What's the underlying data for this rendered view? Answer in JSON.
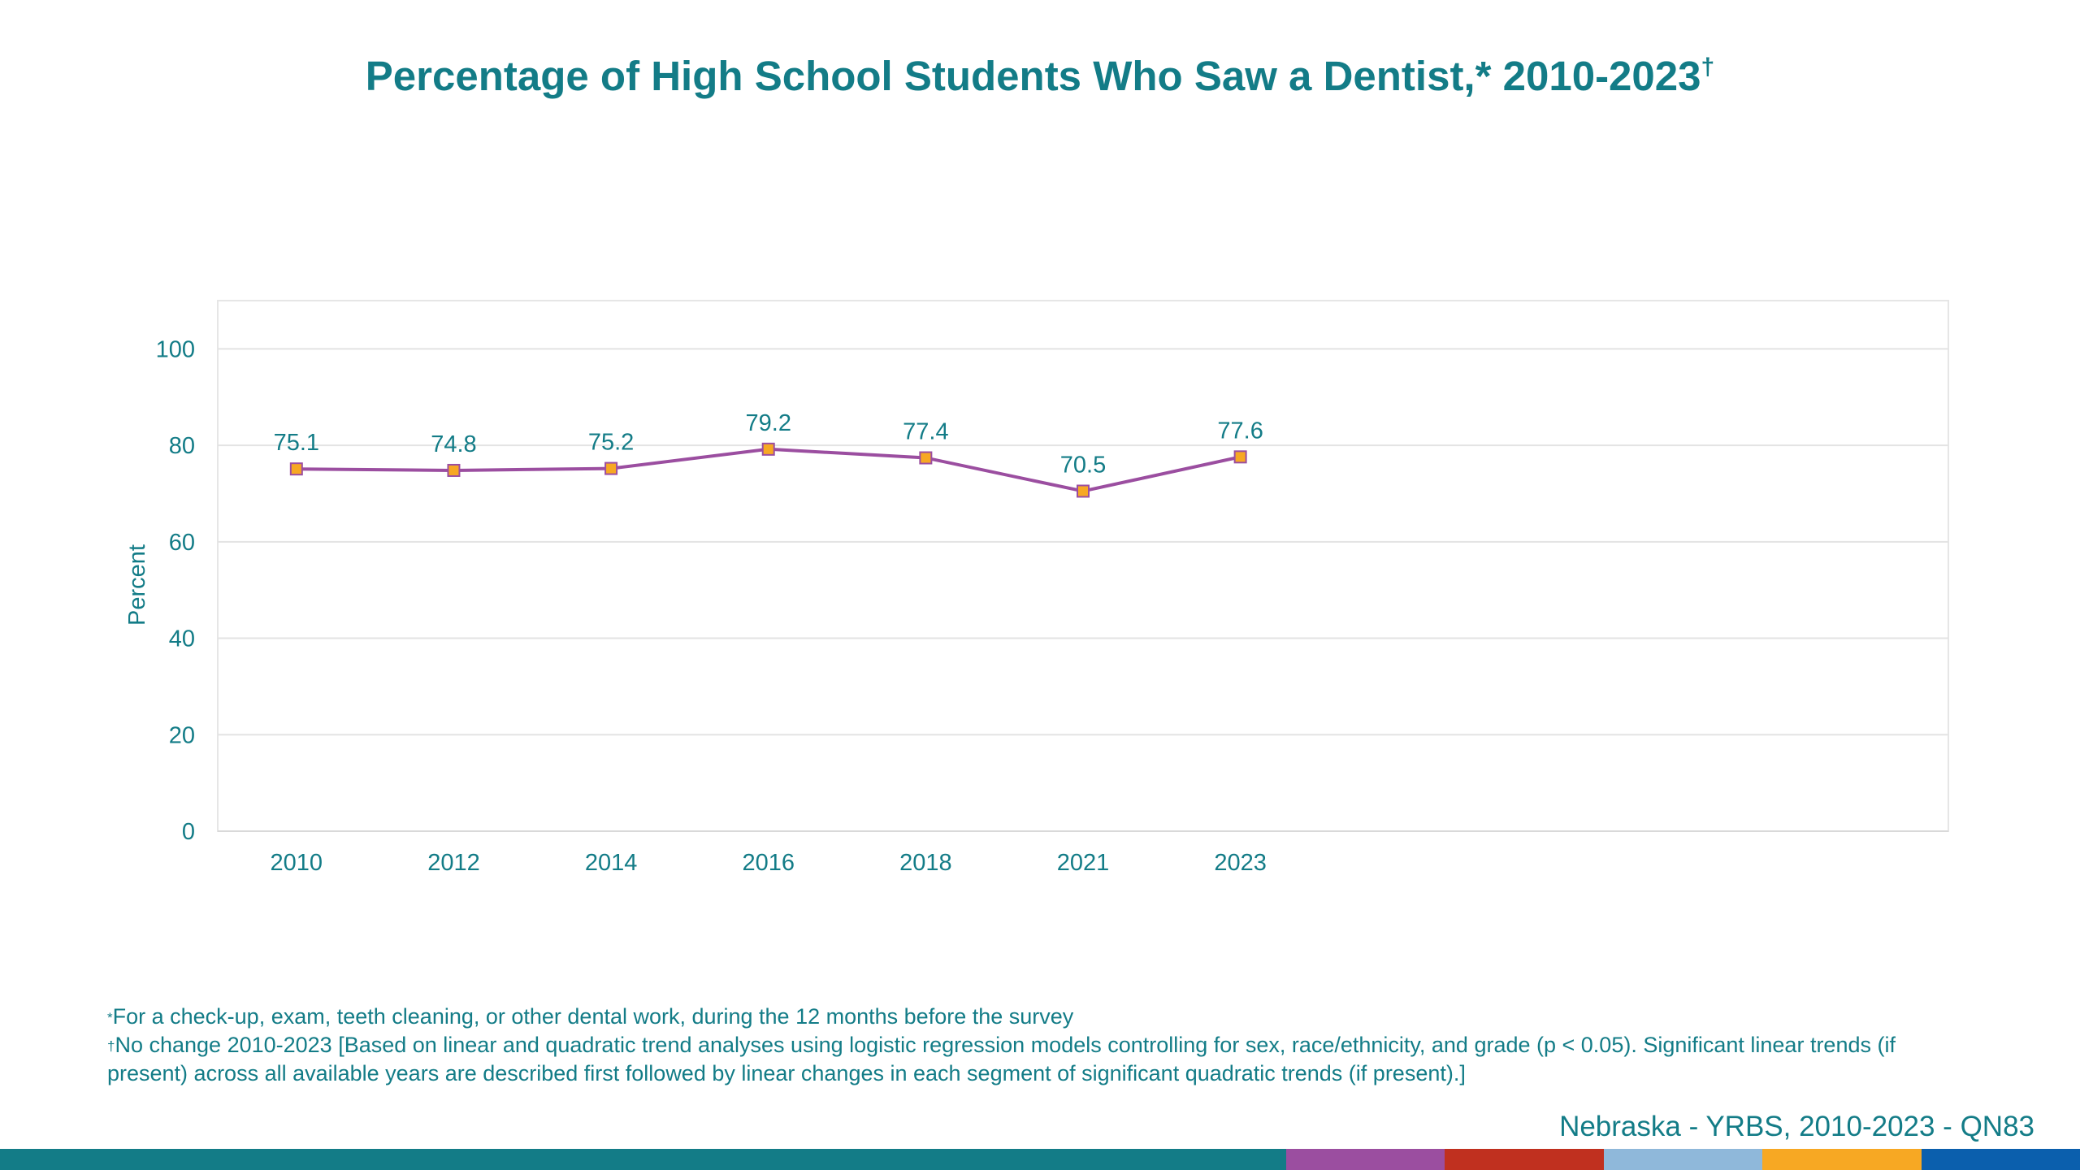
{
  "title": {
    "text": "Percentage of High School Students Who Saw a Dentist,* 2010-2023",
    "mark": "†"
  },
  "footnotes": {
    "note1_mark": "*",
    "note1": "For a check-up, exam, teeth cleaning, or other dental work, during the 12 months before the survey",
    "note2_mark": "†",
    "note2": "No change 2010-2023 [Based on linear and quadratic trend analyses using logistic regression models controlling for sex, race/ethnicity, and grade (p < 0.05). Significant linear trends (if present) across all available years are described first followed by linear changes in each segment of significant quadratic trends (if present).]"
  },
  "source": "Nebraska - YRBS, 2010-2023 - QN83",
  "colors": {
    "text": "#137c87",
    "line": "#9b4ea0",
    "marker_fill": "#f7a823",
    "marker_stroke": "#9b4ea0",
    "grid": "#e3e3e3",
    "frame": "#e6e6e6"
  },
  "bottom_bar": [
    {
      "color": "#137c87",
      "weight": 8.1
    },
    {
      "color": "#9b4ea0",
      "weight": 1
    },
    {
      "color": "#c0301f",
      "weight": 1
    },
    {
      "color": "#8fb8da",
      "weight": 1
    },
    {
      "color": "#f7a823",
      "weight": 1
    },
    {
      "color": "#0b5fad",
      "weight": 1
    }
  ],
  "chart_data": {
    "type": "line",
    "title": "Percentage of High School Students Who Saw a Dentist,* 2010-2023†",
    "xlabel": "",
    "ylabel": "Percent",
    "categories": [
      "2010",
      "2012",
      "2014",
      "2016",
      "2018",
      "2021",
      "2023"
    ],
    "category_slots": 11,
    "series": [
      {
        "values": [
          75.1,
          74.8,
          75.2,
          79.2,
          77.4,
          70.5,
          77.6
        ],
        "labels": [
          "75.1",
          "74.8",
          "75.2",
          "79.2",
          "77.4",
          "70.5",
          "77.6"
        ]
      }
    ],
    "ylim": [
      0,
      110
    ],
    "yticks": [
      0,
      20,
      40,
      60,
      80,
      100
    ],
    "grid": true,
    "legend": "none"
  }
}
